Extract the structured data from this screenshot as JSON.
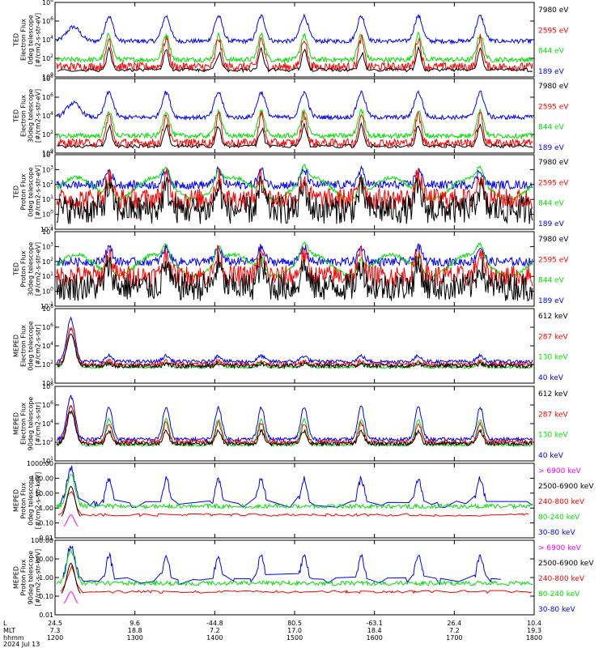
{
  "colors": {
    "blue": "#0000ff",
    "green": "#00e000",
    "red": "#ff0000",
    "black": "#000000",
    "magenta": "#ff00ff"
  },
  "chart_data": {
    "type": "line",
    "grid": false,
    "x_axis": {
      "row_labels": [
        "L",
        "MLT",
        "hhmm",
        "2024 Jul 13"
      ],
      "ticks": [
        {
          "L": "24.5",
          "MLT": "7.3",
          "hhmm": "1200"
        },
        {
          "L": "9.6",
          "MLT": "18.8",
          "hhmm": "1300"
        },
        {
          "L": "-44.8",
          "MLT": "7.2",
          "hhmm": "1400"
        },
        {
          "L": "80.5",
          "MLT": "17.0",
          "hhmm": "1500"
        },
        {
          "L": "-63.1",
          "MLT": "18.4",
          "hhmm": "1600"
        },
        {
          "L": "26.4",
          "MLT": "7.2",
          "hhmm": "1700"
        },
        {
          "L": "10.4",
          "MLT": "19.3",
          "hhmm": "1800"
        }
      ]
    },
    "panels": [
      {
        "ylabel": [
          "TED",
          "Electron Flux",
          "0deg telescope",
          "[#/cm2-s-str-eV]"
        ],
        "yticks": [
          "10^0",
          "10^2",
          "10^4",
          "10^6",
          "10^8"
        ],
        "legend": [
          {
            "t": "7980 eV",
            "c": "black"
          },
          {
            "t": "2595 eV",
            "c": "red"
          },
          {
            "t": "844 eV",
            "c": "green"
          },
          {
            "t": "189 eV",
            "c": "blue"
          }
        ]
      },
      {
        "ylabel": [
          "TED",
          "Electron Flux",
          "30deg telescope",
          "[#/cm2-s-str-eV]"
        ],
        "yticks": [
          "10^0",
          "10^2",
          "10^4",
          "10^6",
          "10^8"
        ],
        "legend": [
          {
            "t": "7980 eV",
            "c": "black"
          },
          {
            "t": "2595 eV",
            "c": "red"
          },
          {
            "t": "844 eV",
            "c": "green"
          },
          {
            "t": "189 eV",
            "c": "blue"
          }
        ]
      },
      {
        "ylabel": [
          "TED",
          "Proton Flux",
          "0deg telescope",
          "[#/cm2-s-str-eV]"
        ],
        "yticks": [
          "10^-1",
          "10^0",
          "10^1",
          "10^2",
          "10^3",
          "10^4"
        ],
        "legend": [
          {
            "t": "7980 eV",
            "c": "black"
          },
          {
            "t": "2595 eV",
            "c": "red"
          },
          {
            "t": "844 eV",
            "c": "green"
          },
          {
            "t": "189 eV",
            "c": "blue"
          }
        ]
      },
      {
        "ylabel": [
          "TED",
          "Proton Flux",
          "30deg telescope",
          "[#/cm2-s-str-eV]"
        ],
        "yticks": [
          "10^-1",
          "10^0",
          "10^1",
          "10^2",
          "10^3",
          "10^4"
        ],
        "legend": [
          {
            "t": "7980 eV",
            "c": "black"
          },
          {
            "t": "2595 eV",
            "c": "red"
          },
          {
            "t": "844 eV",
            "c": "green"
          },
          {
            "t": "189 eV",
            "c": "blue"
          }
        ]
      },
      {
        "ylabel": [
          "MEPED",
          "Electron Flux",
          "0deg telescope",
          "[#/cm2-s-str]"
        ],
        "yticks": [
          "10^1",
          "10^2",
          "10^4",
          "10^6",
          "10^8"
        ],
        "legend": [
          {
            "t": "612 keV",
            "c": "black"
          },
          {
            "t": "287 keV",
            "c": "red"
          },
          {
            "t": "130 keV",
            "c": "green"
          },
          {
            "t": "40 keV",
            "c": "blue"
          }
        ]
      },
      {
        "ylabel": [
          "MEPED",
          "Electron Flux",
          "90deg telescope",
          "[#/cm2-s-str]"
        ],
        "yticks": [
          "10^1",
          "10^2",
          "10^4",
          "10^6",
          "10^8"
        ],
        "legend": [
          {
            "t": "612 keV",
            "c": "black"
          },
          {
            "t": "287 keV",
            "c": "red"
          },
          {
            "t": "130 keV",
            "c": "green"
          },
          {
            "t": "40 keV",
            "c": "blue"
          }
        ]
      },
      {
        "ylabel": [
          "MEPED",
          "Proton Flux",
          "0deg telescope",
          "[#/cm2-s-str-keV]"
        ],
        "yticks": [
          "0.01",
          "0.10",
          "1.00",
          "10.00",
          "100.00",
          "1000.00"
        ],
        "legend": [
          {
            "t": "> 6900 keV",
            "c": "magenta"
          },
          {
            "t": "2500-6900 keV",
            "c": "black"
          },
          {
            "t": "240-800 keV",
            "c": "red"
          },
          {
            "t": "80-240 keV",
            "c": "green"
          },
          {
            "t": "30-80 keV",
            "c": "blue"
          }
        ]
      },
      {
        "ylabel": [
          "MEPED",
          "Proton Flux",
          "90deg telescope",
          "[#/cm2-s-str-keV]"
        ],
        "yticks": [
          "0.01",
          "0.10",
          "1.00",
          "10.00",
          "100.00"
        ],
        "legend": [
          {
            "t": "> 6900 keV",
            "c": "magenta"
          },
          {
            "t": "2500-6900 keV",
            "c": "black"
          },
          {
            "t": "240-800 keV",
            "c": "red"
          },
          {
            "t": "80-240 keV",
            "c": "green"
          },
          {
            "t": "30-80 keV",
            "c": "blue"
          }
        ]
      }
    ]
  }
}
